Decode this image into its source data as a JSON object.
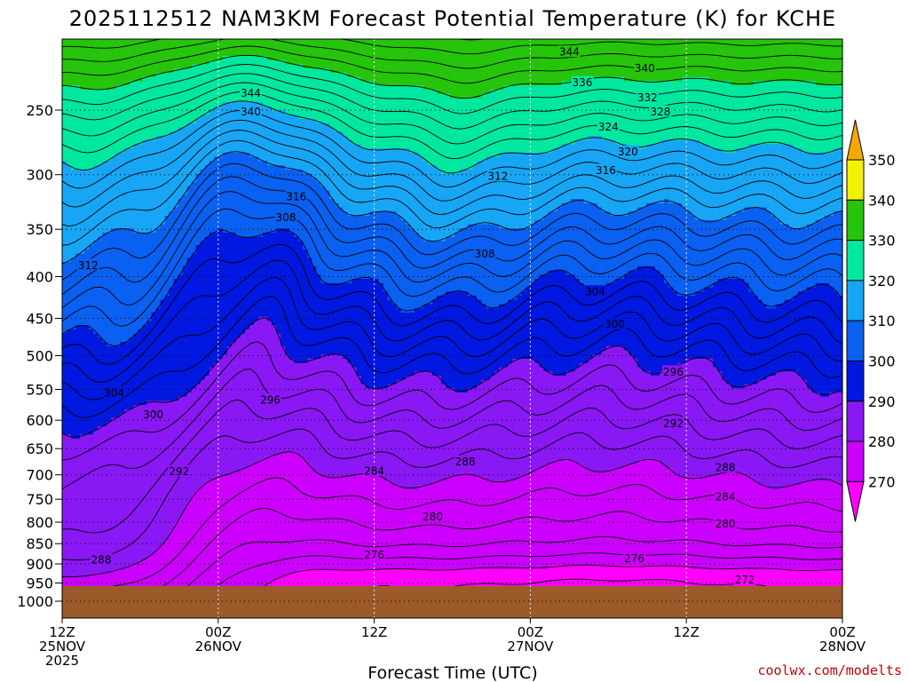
{
  "title": "2025112512 NAM3KM Forecast Potential Temperature (K) for KCHE",
  "xlabel": "Forecast Time (UTC)",
  "credit": "coolwx.com/modelts",
  "chart_data": {
    "type": "heatmap",
    "title": "2025112512 NAM3KM Forecast Potential Temperature (K) for KCHE",
    "xlabel": "Forecast Time (UTC)",
    "ylabel": "",
    "y_scale": "log",
    "y_inverted": true,
    "y_ticks": [
      250,
      300,
      350,
      400,
      450,
      500,
      550,
      600,
      650,
      700,
      750,
      800,
      850,
      900,
      950,
      1000
    ],
    "x_ticks": [
      {
        "h": 0,
        "lines": [
          "12Z",
          "25NOV",
          "2025"
        ]
      },
      {
        "h": 12,
        "lines": [
          "00Z",
          "26NOV"
        ]
      },
      {
        "h": 24,
        "lines": [
          "12Z"
        ]
      },
      {
        "h": 36,
        "lines": [
          "00Z",
          "27NOV"
        ]
      },
      {
        "h": 48,
        "lines": [
          "12Z"
        ]
      },
      {
        "h": 60,
        "lines": [
          "00Z",
          "28NOV"
        ]
      }
    ],
    "colorbar": {
      "levels": [
        270,
        280,
        290,
        300,
        310,
        320,
        330,
        340,
        350
      ],
      "colors": [
        "#ff00ff",
        "#cc00ff",
        "#8a18f5",
        "#0018e0",
        "#0a60f0",
        "#17a6f5",
        "#00e8a0",
        "#26c40a",
        "#f2f200",
        "#f5a800"
      ]
    },
    "terrain": {
      "color": "#9c5a2b",
      "surface_pressure_hpa": 958
    },
    "contour_interval": 2,
    "contour_labels": [
      {
        "value": 344,
        "h": 39.0,
        "p": 212
      },
      {
        "value": 340,
        "h": 44.8,
        "p": 222
      },
      {
        "value": 336,
        "h": 40.0,
        "p": 231
      },
      {
        "value": 332,
        "h": 45.0,
        "p": 241
      },
      {
        "value": 328,
        "h": 46.0,
        "p": 251
      },
      {
        "value": 324,
        "h": 42.0,
        "p": 262
      },
      {
        "value": 320,
        "h": 43.5,
        "p": 281
      },
      {
        "value": 316,
        "h": 41.8,
        "p": 296
      },
      {
        "value": 312,
        "h": 33.5,
        "p": 301
      },
      {
        "value": 344,
        "h": 14.5,
        "p": 238
      },
      {
        "value": 340,
        "h": 14.5,
        "p": 251
      },
      {
        "value": 316,
        "h": 18.0,
        "p": 319
      },
      {
        "value": 308,
        "h": 17.2,
        "p": 338
      },
      {
        "value": 308,
        "h": 32.5,
        "p": 375
      },
      {
        "value": 312,
        "h": 2.0,
        "p": 387
      },
      {
        "value": 304,
        "h": 41.0,
        "p": 417
      },
      {
        "value": 300,
        "h": 42.5,
        "p": 457
      },
      {
        "value": 296,
        "h": 47.0,
        "p": 523
      },
      {
        "value": 304,
        "h": 4.0,
        "p": 555
      },
      {
        "value": 300,
        "h": 7.0,
        "p": 590
      },
      {
        "value": 296,
        "h": 16.0,
        "p": 566
      },
      {
        "value": 292,
        "h": 47.0,
        "p": 605
      },
      {
        "value": 292,
        "h": 9.0,
        "p": 693
      },
      {
        "value": 288,
        "h": 31.0,
        "p": 674
      },
      {
        "value": 288,
        "h": 51.0,
        "p": 685
      },
      {
        "value": 284,
        "h": 24.0,
        "p": 692
      },
      {
        "value": 284,
        "h": 51.0,
        "p": 744
      },
      {
        "value": 280,
        "h": 28.5,
        "p": 787
      },
      {
        "value": 280,
        "h": 51.0,
        "p": 803
      },
      {
        "value": 288,
        "h": 3.0,
        "p": 889
      },
      {
        "value": 276,
        "h": 24.0,
        "p": 877
      },
      {
        "value": 276,
        "h": 44.0,
        "p": 886
      },
      {
        "value": 272,
        "h": 52.5,
        "p": 941
      }
    ]
  }
}
